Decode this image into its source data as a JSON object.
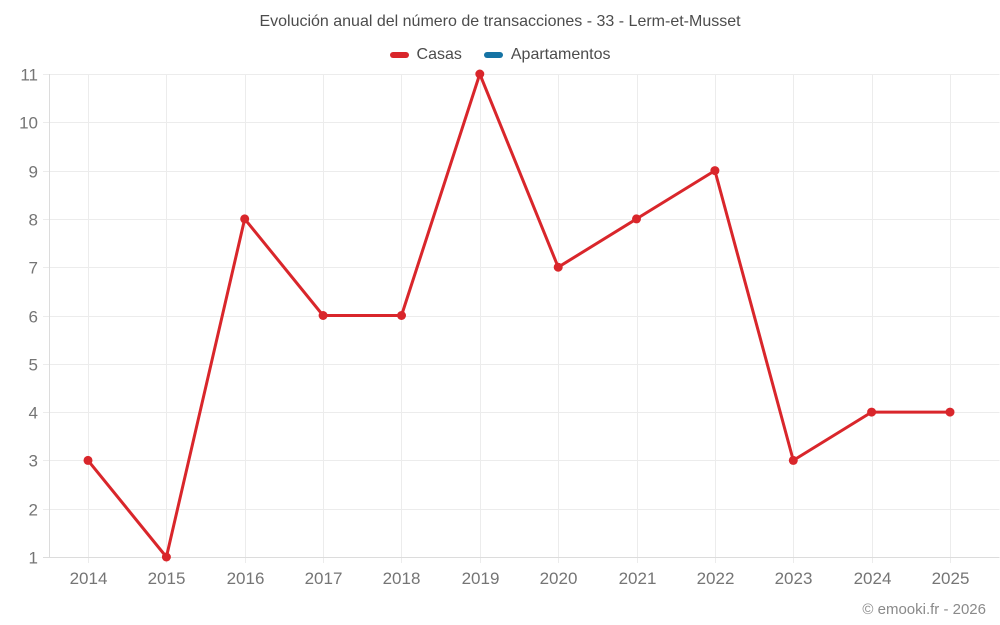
{
  "header": {
    "title": "Evolución anual del número de transacciones - 33 - Lerm-et-Musset"
  },
  "legend": {
    "items": [
      {
        "label": "Casas",
        "color": "#d9262b"
      },
      {
        "label": "Apartamentos",
        "color": "#1573a4"
      }
    ]
  },
  "footer": {
    "credit": "© emooki.fr - 2026"
  },
  "chart_data": {
    "type": "line",
    "title": "Evolución anual del número de transacciones - 33 - Lerm-et-Musset",
    "categories": [
      "2014",
      "2015",
      "2016",
      "2017",
      "2018",
      "2019",
      "2020",
      "2021",
      "2022",
      "2023",
      "2024",
      "2025"
    ],
    "series": [
      {
        "name": "Casas",
        "color": "#d9262b",
        "values": [
          3,
          1,
          8,
          6,
          6,
          11,
          7,
          8,
          9,
          3,
          4,
          4
        ]
      },
      {
        "name": "Apartamentos",
        "color": "#1573a4",
        "values": []
      }
    ],
    "xlabel": "",
    "ylabel": "",
    "ylim": [
      1,
      11
    ],
    "yticks": [
      1,
      2,
      3,
      4,
      5,
      6,
      7,
      8,
      9,
      10,
      11
    ],
    "grid": true,
    "legend_position": "top",
    "marker": "circle"
  },
  "style": {
    "grid_color": "#ececec",
    "axis_color": "#dcdcdc",
    "tick_label_color": "#757575",
    "title_color": "#4c4c4c",
    "footer_color": "#8a8a8a",
    "background": "#ffffff"
  }
}
